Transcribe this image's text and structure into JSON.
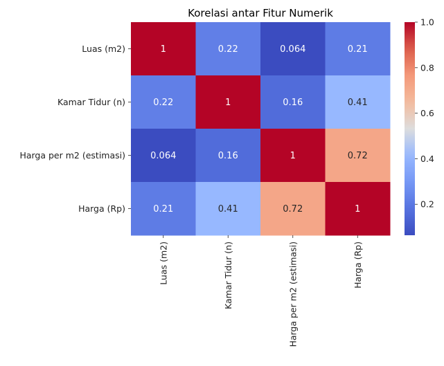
{
  "chart_data": {
    "type": "heatmap",
    "title": "Korelasi antar Fitur Numerik",
    "rows": [
      "Luas (m2)",
      "Kamar Tidur (n)",
      "Harga per m2 (estimasi)",
      "Harga (Rp)"
    ],
    "columns": [
      "Luas (m2)",
      "Kamar Tidur (n)",
      "Harga per m2 (estimasi)",
      "Harga (Rp)"
    ],
    "values": [
      [
        1,
        0.22,
        0.064,
        0.21
      ],
      [
        0.22,
        1,
        0.16,
        0.41
      ],
      [
        0.064,
        0.16,
        1,
        0.72
      ],
      [
        0.21,
        0.41,
        0.72,
        1
      ]
    ],
    "annotations": [
      [
        "1",
        "0.22",
        "0.064",
        "0.21"
      ],
      [
        "0.22",
        "1",
        "0.16",
        "0.41"
      ],
      [
        "0.064",
        "0.16",
        "1",
        "0.72"
      ],
      [
        "0.21",
        "0.41",
        "0.72",
        "1"
      ]
    ],
    "colormap": "coolwarm",
    "value_range": [
      0.064,
      1.0
    ],
    "colorbar_ticks": [
      "0.2",
      "0.4",
      "0.6",
      "0.8",
      "1.0"
    ],
    "colorbar_tick_values": [
      0.2,
      0.4,
      0.6,
      0.8,
      1.0
    ]
  }
}
